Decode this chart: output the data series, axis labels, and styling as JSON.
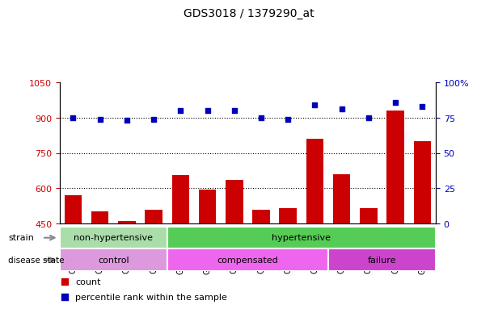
{
  "title": "GDS3018 / 1379290_at",
  "categories": [
    "GSM180079",
    "GSM180082",
    "GSM180085",
    "GSM180089",
    "GSM178755",
    "GSM180057",
    "GSM180059",
    "GSM180061",
    "GSM180062",
    "GSM180065",
    "GSM180068",
    "GSM180069",
    "GSM180073",
    "GSM180075"
  ],
  "counts": [
    570,
    500,
    460,
    510,
    655,
    595,
    635,
    510,
    515,
    810,
    660,
    515,
    930,
    800
  ],
  "percentiles": [
    75,
    74,
    73,
    74,
    80,
    80,
    80,
    75,
    74,
    84,
    81,
    75,
    86,
    83
  ],
  "ylim_left": [
    450,
    1050
  ],
  "ylim_right": [
    0,
    100
  ],
  "yticks_left": [
    450,
    600,
    750,
    900,
    1050
  ],
  "yticks_right": [
    0,
    25,
    50,
    75,
    100
  ],
  "bar_color": "#cc0000",
  "dot_color": "#0000bb",
  "grid_lines": [
    600,
    750,
    900
  ],
  "strain_groups": [
    {
      "label": "non-hypertensive",
      "start": 0,
      "end": 4,
      "color": "#aaddaa"
    },
    {
      "label": "hypertensive",
      "start": 4,
      "end": 14,
      "color": "#55cc55"
    }
  ],
  "disease_groups": [
    {
      "label": "control",
      "start": 0,
      "end": 4,
      "color": "#dd99dd"
    },
    {
      "label": "compensated",
      "start": 4,
      "end": 10,
      "color": "#ee66ee"
    },
    {
      "label": "failure",
      "start": 10,
      "end": 14,
      "color": "#cc44cc"
    }
  ],
  "legend_items": [
    {
      "color": "#cc0000",
      "label": "count"
    },
    {
      "color": "#0000bb",
      "label": "percentile rank within the sample"
    }
  ],
  "left_axis_color": "#cc0000",
  "right_axis_color": "#0000bb",
  "plot_bg": "#ffffff",
  "fig_bg": "#ffffff"
}
